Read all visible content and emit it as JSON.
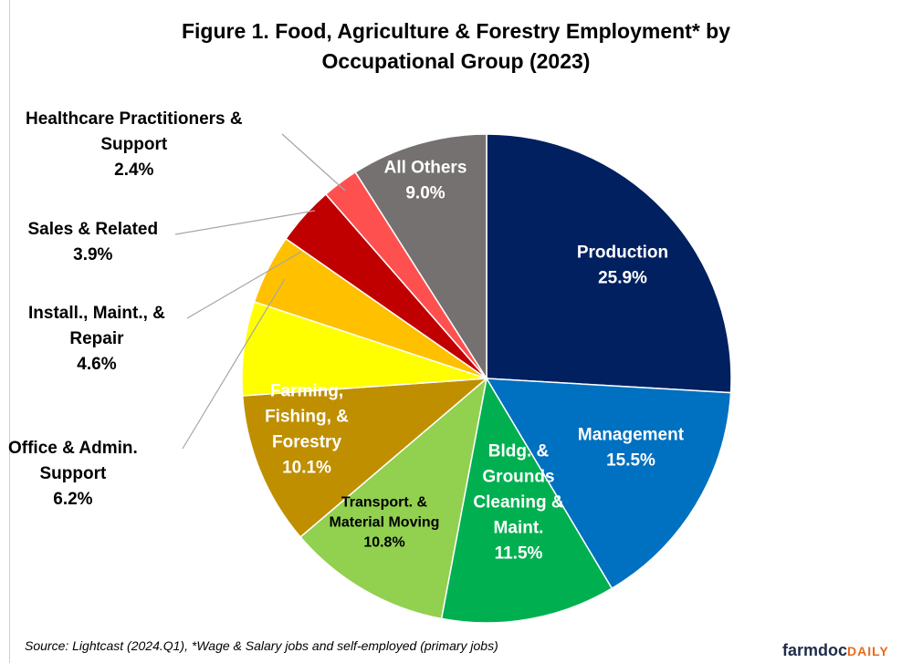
{
  "title_line1": "Figure 1. Food, Agriculture & Forestry Employment* by",
  "title_line2": "Occupational Group (2023)",
  "source": "Source: Lightcast (2024.Q1),  *Wage & Salary jobs and self-employed (primary jobs)",
  "logo": {
    "main": "farmdoc",
    "accent": "DAILY"
  },
  "chart_data": {
    "type": "pie",
    "title": "Figure 1. Food, Agriculture & Forestry Employment* by Occupational Group (2023)",
    "slices": [
      {
        "name": "Production",
        "value": 25.9,
        "label": [
          "Production",
          "25.9%"
        ],
        "color": "#002060",
        "text_color": "#ffffff"
      },
      {
        "name": "Management",
        "value": 15.5,
        "label": [
          "Management",
          "15.5%"
        ],
        "color": "#0070C0",
        "text_color": "#ffffff"
      },
      {
        "name": "Bldg. & Grounds Cleaning & Maint.",
        "value": 11.5,
        "label": [
          "Bldg. &",
          "Grounds",
          "Cleaning &",
          "Maint.",
          "11.5%"
        ],
        "color": "#00B050",
        "text_color": "#ffffff"
      },
      {
        "name": "Transport. & Material Moving",
        "value": 10.8,
        "label": [
          "Transport. &",
          "Material Moving",
          "10.8%"
        ],
        "color": "#92D050",
        "text_color": "#000000"
      },
      {
        "name": "Farming, Fishing, & Forestry",
        "value": 10.1,
        "label": [
          "Farming,",
          "Fishing, &",
          "Forestry",
          "10.1%"
        ],
        "color": "#BF8F00",
        "text_color": "#ffffff"
      },
      {
        "name": "Office & Admin. Support",
        "value": 6.2,
        "label": [
          "Office & Admin.",
          "Support",
          "6.2%"
        ],
        "color": "#FFFF00",
        "text_color": "#000000",
        "external": true
      },
      {
        "name": "Install., Maint., & Repair",
        "value": 4.6,
        "label": [
          "Install., Maint., &",
          "Repair",
          "4.6%"
        ],
        "color": "#FFC000",
        "text_color": "#000000",
        "external": true
      },
      {
        "name": "Sales & Related",
        "value": 3.9,
        "label": [
          "Sales & Related",
          "3.9%"
        ],
        "color": "#C00000",
        "text_color": "#000000",
        "external": true
      },
      {
        "name": "Healthcare Practitioners & Support",
        "value": 2.4,
        "label": [
          "Healthcare Practitioners &",
          "Support",
          "2.4%"
        ],
        "color": "#FF5050",
        "text_color": "#000000",
        "external": true
      },
      {
        "name": "All Others",
        "value": 9.0,
        "label": [
          "All Others",
          "9.0%"
        ],
        "color": "#767171",
        "text_color": "#ffffff"
      }
    ]
  }
}
